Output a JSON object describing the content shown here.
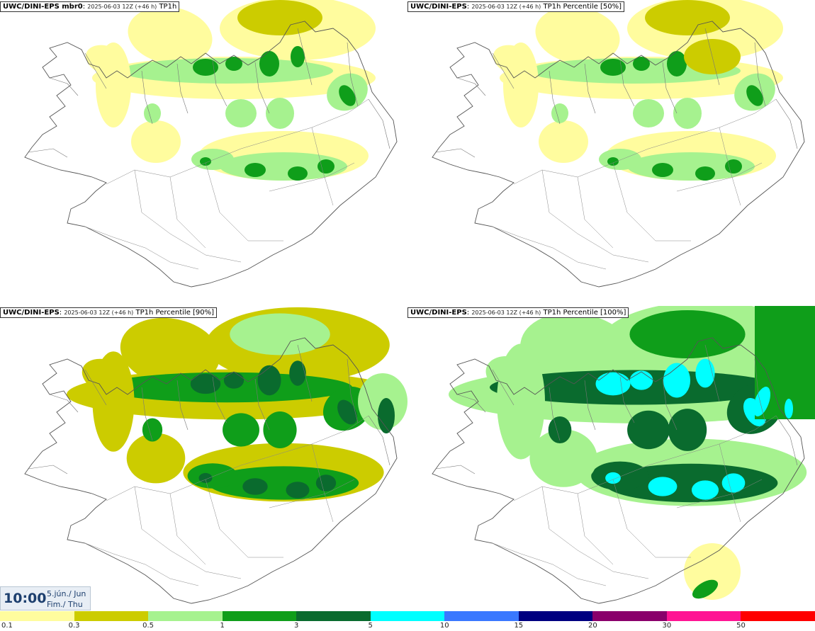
{
  "panels": [
    {
      "model": "UWC/DINI-EPS mbr0",
      "run": "2025-06-03 12Z (+46 h)",
      "field": "TP1h"
    },
    {
      "model": "UWC/DINI-EPS",
      "run": "2025-06-03 12Z (+46 h)",
      "field": "TP1h Percentile [50%]"
    },
    {
      "model": "UWC/DINI-EPS",
      "run": "2025-06-03 12Z (+46 h)",
      "field": "TP1h Percentile [90%]"
    },
    {
      "model": "UWC/DINI-EPS",
      "run": "2025-06-03 12Z (+46 h)",
      "field": "TP1h Percentile [100%]"
    }
  ],
  "valid_time": {
    "time": "10:00",
    "date_line": "5.jún./ Jun",
    "day_line": "Fim./ Thu"
  },
  "legend": {
    "colors": [
      "#fffc9e",
      "#cccc00",
      "#a6f28f",
      "#0f9e1a",
      "#0a6b2e",
      "#00ffff",
      "#3a78ff",
      "#000080",
      "#8a006b",
      "#ff1493",
      "#ff0000"
    ],
    "labels": [
      "0.1",
      "0.3",
      "0.5",
      "1",
      "3",
      "5",
      "10",
      "15",
      "20",
      "30",
      "50"
    ]
  },
  "map_colors": {
    "0.1": "#fffc9e",
    "0.3": "#cccc00",
    "0.5": "#a6f28f",
    "1": "#0f9e1a",
    "3": "#0a6b2e",
    "5": "#00ffff",
    "coast": "#555555"
  }
}
